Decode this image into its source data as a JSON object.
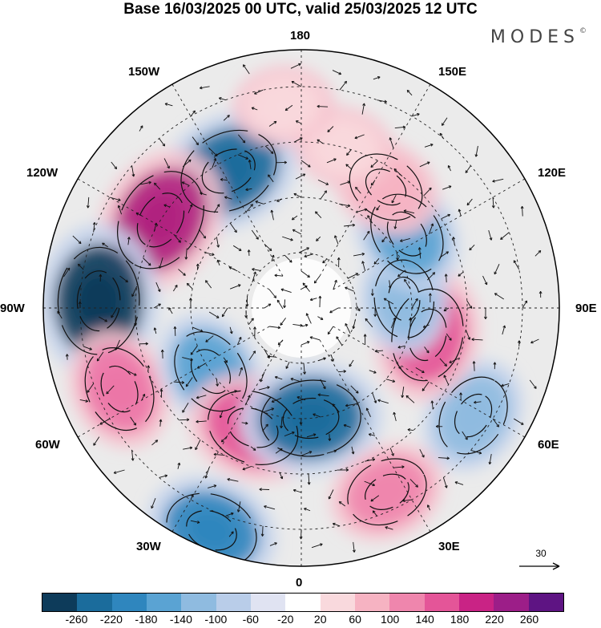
{
  "title": "Base 16/03/2025 00 UTC, valid 25/03/2025 12 UTC",
  "brand": "MODES",
  "brand_mark": "©",
  "longitude_labels": {
    "top": "180",
    "bottom": "0",
    "left": "90W",
    "right": "90E",
    "upper_left_1": "150W",
    "upper_left_2": "120W",
    "upper_right_1": "150E",
    "upper_right_2": "120E",
    "lower_left_1": "60W",
    "lower_left_2": "30W",
    "lower_right_1": "60E",
    "lower_right_2": "30E"
  },
  "reference_vector": "30",
  "colorbar": {
    "colors": [
      "#0d3b5a",
      "#1b6c9c",
      "#2f86be",
      "#5aa3d3",
      "#8fbbe0",
      "#b9cde9",
      "#e0e3f2",
      "#ffffff",
      "#f9d9dd",
      "#f6b3c2",
      "#ef86ad",
      "#e45598",
      "#c92385",
      "#9c1e88",
      "#5e1483"
    ],
    "tick_labels": [
      "-260",
      "-220",
      "-180",
      "-140",
      "-100",
      "-60",
      "-20",
      "20",
      "60",
      "100",
      "140",
      "180",
      "220",
      "260"
    ]
  },
  "anomaly_centers": [
    {
      "lon": -152,
      "lat": 48,
      "value": -220,
      "color": "#1b6c9c"
    },
    {
      "lon": -122,
      "lat": 45,
      "value": 240,
      "color": "#b0217f"
    },
    {
      "lon": -92,
      "lat": 35,
      "value": -260,
      "color": "#0d3b5a"
    },
    {
      "lon": -66,
      "lat": 36,
      "value": 140,
      "color": "#ec76a7"
    },
    {
      "lon": -55,
      "lat": 60,
      "value": -140,
      "color": "#5aa3d3"
    },
    {
      "lon": -22,
      "lat": 55,
      "value": 180,
      "color": "#e45598"
    },
    {
      "lon": -22,
      "lat": 25,
      "value": -180,
      "color": "#2f86be"
    },
    {
      "lon": 5,
      "lat": 60,
      "value": -220,
      "color": "#1b6c9c"
    },
    {
      "lon": 25,
      "lat": 35,
      "value": 120,
      "color": "#ef86ad"
    },
    {
      "lon": 58,
      "lat": 35,
      "value": -120,
      "color": "#8fbbe0"
    },
    {
      "lon": 78,
      "lat": 55,
      "value": 180,
      "color": "#e45598"
    },
    {
      "lon": 95,
      "lat": 62,
      "value": -100,
      "color": "#8fbbe0"
    },
    {
      "lon": 125,
      "lat": 55,
      "value": -140,
      "color": "#5aa3d3"
    },
    {
      "lon": 145,
      "lat": 50,
      "value": 100,
      "color": "#f6b3c2"
    },
    {
      "lon": 165,
      "lat": 45,
      "value": 60,
      "color": "#f9d9dd"
    },
    {
      "lon": -175,
      "lat": 35,
      "value": 60,
      "color": "#f9d9dd"
    }
  ]
}
